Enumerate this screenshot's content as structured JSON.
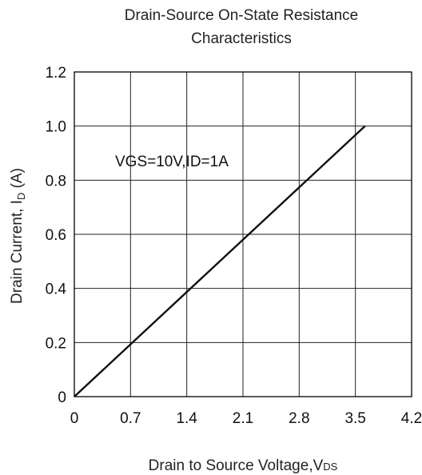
{
  "chart_data": {
    "type": "line",
    "title_line1": "Drain-Source On-State Resistance",
    "title_line2": "Characteristics",
    "xlabel_main": "Drain to Source Voltage,V",
    "xlabel_sub": "DS",
    "ylabel_main": "Drain Current, I",
    "ylabel_sub": "D",
    "ylabel_unit": " (A)",
    "annotation": "VGS=10V,ID=1A",
    "xlim": [
      0,
      4.2
    ],
    "ylim": [
      0,
      1.2
    ],
    "x_ticks": [
      0,
      0.7,
      1.4,
      2.1,
      2.8,
      3.5,
      4.2
    ],
    "x_tick_labels": [
      "0",
      "0.7",
      "1.4",
      "2.1",
      "2.8",
      "3.5",
      "4.2"
    ],
    "y_ticks": [
      0,
      0.2,
      0.4,
      0.6,
      0.8,
      1.0,
      1.2
    ],
    "y_tick_labels": [
      "0",
      "0.2",
      "0.4",
      "0.6",
      "0.8",
      "1.0",
      "1.2"
    ],
    "grid": true,
    "colors": {
      "line": "#111111",
      "grid": "#222222",
      "frame": "#000000"
    },
    "series": [
      {
        "x": [
          0,
          3.62
        ],
        "y": [
          0,
          1.0
        ]
      }
    ]
  }
}
